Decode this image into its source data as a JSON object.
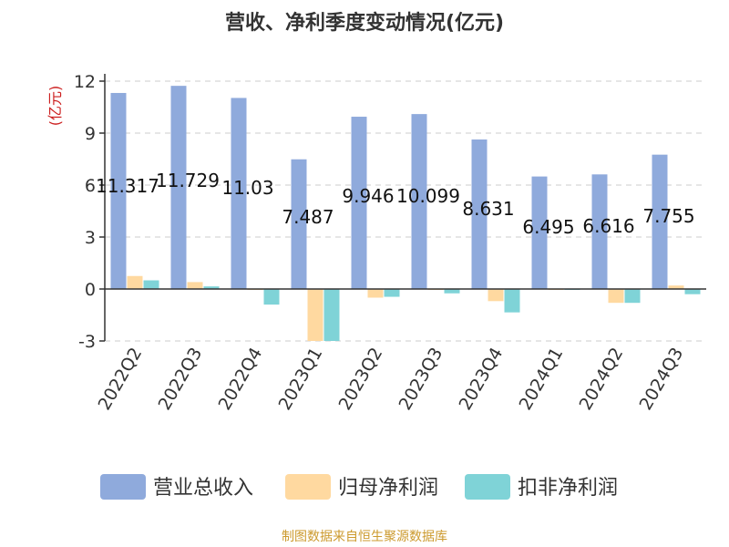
{
  "chart_data": {
    "type": "bar",
    "title": "营收、净利季度变动情况(亿元)",
    "ylabel": "(亿元)",
    "xlabel": "",
    "ylim": [
      -3,
      12
    ],
    "yticks": [
      -3,
      0,
      3,
      6,
      9,
      12
    ],
    "grid": true,
    "legend_position": "bottom",
    "categories": [
      "2022Q2",
      "2022Q3",
      "2022Q4",
      "2023Q1",
      "2023Q2",
      "2023Q3",
      "2023Q4",
      "2024Q1",
      "2024Q2",
      "2024Q3"
    ],
    "series": [
      {
        "name": "营业总收入",
        "color": "#8faadc",
        "values": [
          11.317,
          11.729,
          11.03,
          7.487,
          9.946,
          10.099,
          8.631,
          6.495,
          6.616,
          7.755
        ],
        "labels": [
          "11.317",
          "11.729",
          "11.03",
          "7.487",
          "9.946",
          "10.099",
          "8.631",
          "6.495",
          "6.616",
          "7.755"
        ]
      },
      {
        "name": "归母净利润",
        "color": "#ffd9a0",
        "values": [
          0.75,
          0.4,
          -0.05,
          -3.0,
          -0.5,
          -0.05,
          -0.7,
          -0.05,
          -0.8,
          0.2
        ],
        "labels": []
      },
      {
        "name": "扣非净利润",
        "color": "#7fd3d7",
        "values": [
          0.5,
          0.15,
          -0.9,
          -3.0,
          -0.45,
          -0.25,
          -1.35,
          -0.05,
          -0.8,
          -0.3
        ],
        "labels": []
      }
    ]
  },
  "footer": {
    "source_text": "制图数据来自恒生聚源数据库"
  }
}
